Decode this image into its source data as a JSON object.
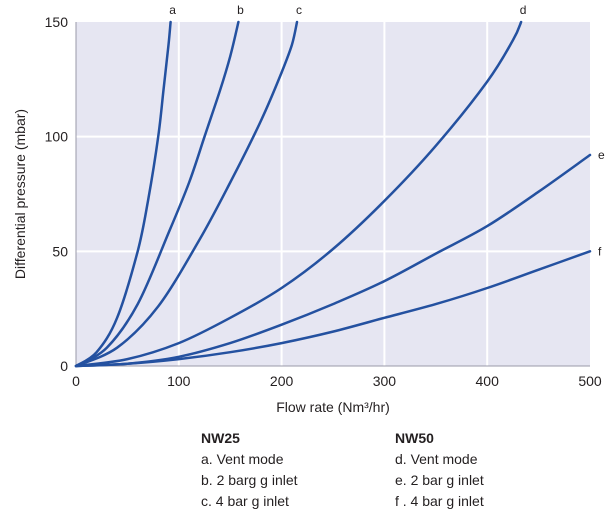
{
  "chart_data": {
    "type": "line",
    "title": "",
    "xlabel": "Flow rate (Nm³/hr)",
    "ylabel": "Differential pressure (mbar)",
    "xlim": [
      0,
      500
    ],
    "ylim": [
      0,
      150
    ],
    "xticks": [
      "0",
      "100",
      "200",
      "300",
      "400",
      "500"
    ],
    "yticks": [
      "0",
      "50",
      "100",
      "150"
    ],
    "grid": true,
    "colors": {
      "plot_background": "#e6e6f2",
      "grid": "#ffffff",
      "line": "#2451a0"
    },
    "series": [
      {
        "name": "a",
        "x": [
          0,
          20,
          40,
          60,
          70,
          80,
          85,
          90,
          92
        ],
        "y": [
          0,
          6,
          21,
          50,
          72,
          100,
          120,
          140,
          150
        ]
      },
      {
        "name": "b",
        "x": [
          0,
          30,
          60,
          90,
          110,
          125,
          140,
          150,
          158
        ],
        "y": [
          0,
          8,
          27,
          58,
          80,
          100,
          120,
          135,
          150
        ]
      },
      {
        "name": "c",
        "x": [
          0,
          40,
          80,
          120,
          150,
          180,
          200,
          210,
          215
        ],
        "y": [
          0,
          8,
          26,
          55,
          80,
          107,
          128,
          140,
          150
        ]
      },
      {
        "name": "d",
        "x": [
          0,
          50,
          100,
          150,
          200,
          250,
          300,
          350,
          400,
          425,
          433
        ],
        "y": [
          0,
          3,
          10,
          21,
          34,
          51,
          72,
          96,
          124,
          142,
          150
        ]
      },
      {
        "name": "e",
        "x": [
          0,
          50,
          100,
          150,
          200,
          250,
          300,
          350,
          400,
          450,
          500
        ],
        "y": [
          0,
          1,
          4,
          10,
          18,
          27,
          37,
          49,
          61,
          76,
          92
        ]
      },
      {
        "name": "f",
        "x": [
          0,
          50,
          100,
          150,
          200,
          250,
          300,
          350,
          400,
          450,
          500
        ],
        "y": [
          0,
          1,
          3,
          6,
          10,
          15,
          21,
          27,
          34,
          42,
          50
        ]
      }
    ]
  },
  "legend": {
    "nw25": {
      "heading": "NW25",
      "items": [
        "a. Vent mode",
        "b. 2 barg g inlet",
        "c. 4 bar g inlet"
      ]
    },
    "nw50": {
      "heading": "NW50",
      "items": [
        "d. Vent mode",
        "e. 2 bar g inlet",
        "f . 4 bar g inlet"
      ]
    }
  }
}
